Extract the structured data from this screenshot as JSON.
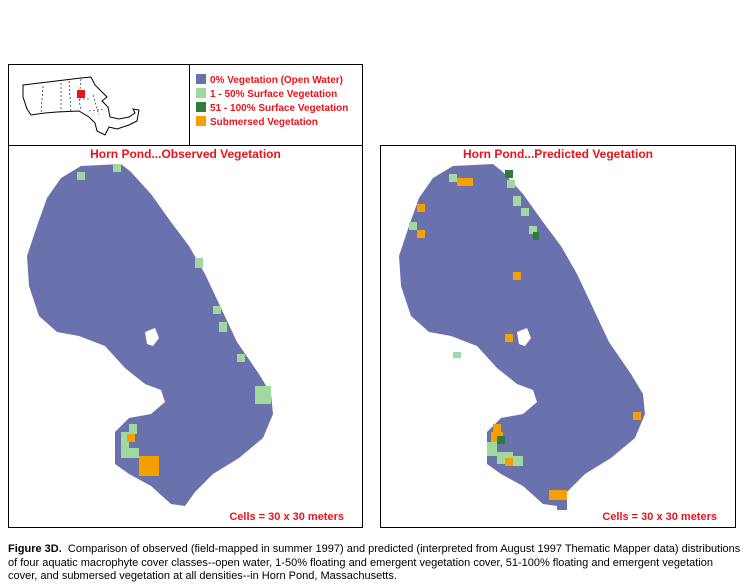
{
  "legend": {
    "items": [
      {
        "label": "0% Vegetation (Open Water)",
        "color": "#6a72ad"
      },
      {
        "label": "1 - 50% Surface Vegetation",
        "color": "#a0d8a0"
      },
      {
        "label": "51 - 100% Surface Vegetation",
        "color": "#2f7d3c"
      },
      {
        "label": "Submersed Vegetation",
        "color": "#f5a000"
      }
    ]
  },
  "locator_map": {
    "region": "Massachusetts",
    "highlight_color": "#e8141b"
  },
  "panels": [
    {
      "title": "Horn Pond...Observed Vegetation",
      "note": "Cells = 30 x 30 meters"
    },
    {
      "title": "Horn Pond...Predicted Vegetation",
      "note": "Cells = 30 x 30 meters"
    }
  ],
  "caption": {
    "label": "Figure 3D.",
    "text": "Comparison of observed (field-mapped in summer 1997) and predicted (interpreted from August 1997 Thematic Mapper data) distributions of four aquatic macrophyte cover classes--open water, 1-50% floating and emergent vegetation cover, 51-100% floating and emergent vegetation cover, and submersed vegetation at all densities--in Horn Pond, Massachusetts."
  },
  "colors": {
    "water": "#6a72ad",
    "sparse": "#a0d8a0",
    "dense": "#2f7d3c",
    "submersed": "#f5a000",
    "title_red": "#e8141b"
  }
}
